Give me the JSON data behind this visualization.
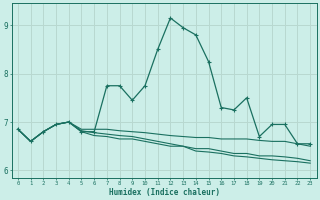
{
  "xlabel": "Humidex (Indice chaleur)",
  "background_color": "#cceee8",
  "grid_color": "#b8d8d0",
  "line_color": "#1a7060",
  "x_values": [
    0,
    1,
    2,
    3,
    4,
    5,
    6,
    7,
    8,
    9,
    10,
    11,
    12,
    13,
    14,
    15,
    16,
    17,
    18,
    19,
    20,
    21,
    22,
    23
  ],
  "line_main": [
    6.85,
    6.6,
    6.8,
    6.95,
    7.0,
    6.8,
    6.8,
    7.75,
    7.75,
    7.45,
    7.75,
    8.5,
    9.15,
    8.95,
    8.8,
    8.25,
    7.3,
    7.25,
    7.5,
    6.7,
    6.95,
    6.95,
    6.55,
    6.55
  ],
  "line2": [
    6.85,
    6.6,
    6.8,
    6.95,
    7.0,
    6.85,
    6.85,
    6.85,
    6.82,
    6.8,
    6.78,
    6.75,
    6.72,
    6.7,
    6.68,
    6.68,
    6.65,
    6.65,
    6.65,
    6.62,
    6.6,
    6.6,
    6.55,
    6.5
  ],
  "line3": [
    6.85,
    6.6,
    6.8,
    6.95,
    7.0,
    6.82,
    6.78,
    6.75,
    6.72,
    6.7,
    6.65,
    6.6,
    6.55,
    6.5,
    6.45,
    6.45,
    6.4,
    6.35,
    6.35,
    6.3,
    6.3,
    6.28,
    6.25,
    6.2
  ],
  "line4": [
    6.85,
    6.6,
    6.8,
    6.95,
    7.0,
    6.8,
    6.72,
    6.7,
    6.65,
    6.65,
    6.6,
    6.55,
    6.5,
    6.5,
    6.4,
    6.38,
    6.35,
    6.3,
    6.28,
    6.25,
    6.22,
    6.2,
    6.18,
    6.15
  ],
  "ylim": [
    5.85,
    9.45
  ],
  "yticks": [
    6,
    7,
    8,
    9
  ],
  "xlim": [
    -0.5,
    23.5
  ],
  "xticks": [
    0,
    1,
    2,
    3,
    4,
    5,
    6,
    7,
    8,
    9,
    10,
    11,
    12,
    13,
    14,
    15,
    16,
    17,
    18,
    19,
    20,
    21,
    22,
    23
  ]
}
